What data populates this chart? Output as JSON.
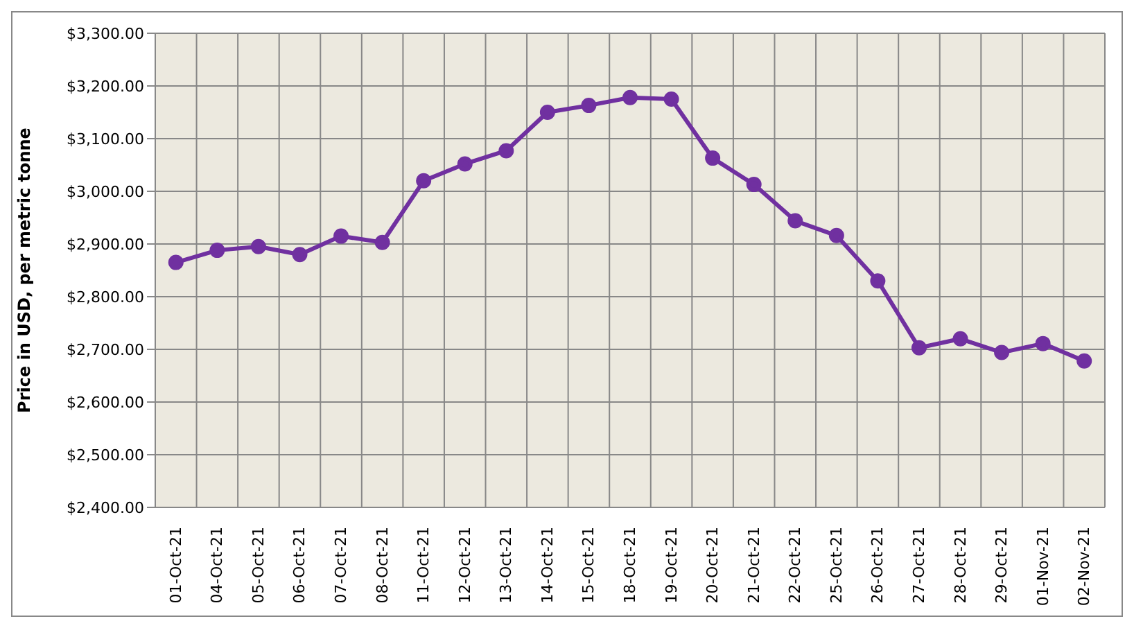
{
  "chart_data": {
    "type": "line",
    "ylabel": "Price in USD, per metric tonne",
    "categories": [
      "01-Oct-21",
      "04-Oct-21",
      "05-Oct-21",
      "06-Oct-21",
      "07-Oct-21",
      "08-Oct-21",
      "11-Oct-21",
      "12-Oct-21",
      "13-Oct-21",
      "14-Oct-21",
      "15-Oct-21",
      "18-Oct-21",
      "19-Oct-21",
      "20-Oct-21",
      "21-Oct-21",
      "22-Oct-21",
      "25-Oct-21",
      "26-Oct-21",
      "27-Oct-21",
      "28-Oct-21",
      "29-Oct-21",
      "01-Nov-21",
      "02-Nov-21"
    ],
    "series": [
      {
        "color": "#7030a0",
        "values": [
          2865,
          2888,
          2895,
          2880,
          2915,
          2903,
          3020,
          3052,
          3077,
          3150,
          3163,
          3178,
          3175,
          3063,
          3013,
          2944,
          2916,
          2830,
          2703,
          2720,
          2694,
          2711,
          2678
        ]
      }
    ],
    "ylim": [
      2400,
      3300
    ],
    "yticks": [
      {
        "value": 2400,
        "label": "$2,400.00"
      },
      {
        "value": 2500,
        "label": "$2,500.00"
      },
      {
        "value": 2600,
        "label": "$2,600.00"
      },
      {
        "value": 2700,
        "label": "$2,700.00"
      },
      {
        "value": 2800,
        "label": "$2,800.00"
      },
      {
        "value": 2900,
        "label": "$2,900.00"
      },
      {
        "value": 3000,
        "label": "$3,000.00"
      },
      {
        "value": 3100,
        "label": "$3,100.00"
      },
      {
        "value": 3200,
        "label": "$3,200.00"
      },
      {
        "value": 3300,
        "label": "$3,300.00"
      }
    ],
    "grid": true,
    "marker": "circle",
    "line_style": "solid",
    "legend": false
  }
}
